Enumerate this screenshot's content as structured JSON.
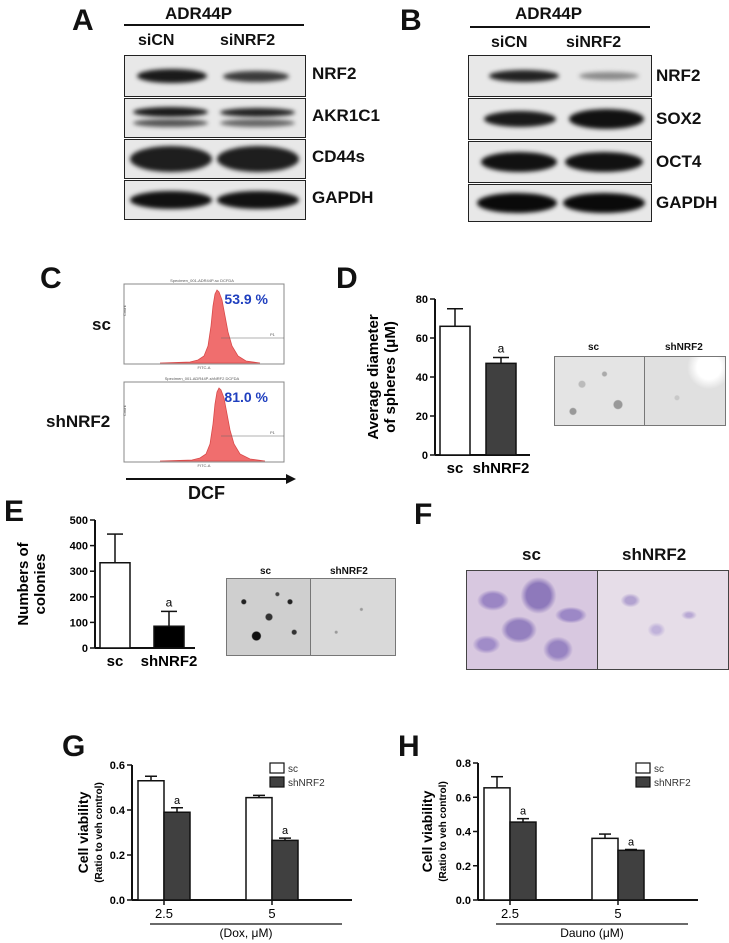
{
  "panels": {
    "A": "A",
    "B": "B",
    "C": "C",
    "D": "D",
    "E": "E",
    "F": "F",
    "G": "G",
    "H": "H"
  },
  "blotA": {
    "cell_line": "ADR44P",
    "lanes": [
      "siCN",
      "siNRF2"
    ],
    "rows": [
      "NRF2",
      "AKR1C1",
      "CD44s",
      "GAPDH"
    ]
  },
  "blotB": {
    "cell_line": "ADR44P",
    "lanes": [
      "siCN",
      "siNRF2"
    ],
    "rows": [
      "NRF2",
      "SOX2",
      "OCT4",
      "GAPDH"
    ]
  },
  "flow": {
    "rows": [
      {
        "label": "sc",
        "percent": "53.9 %",
        "header": "Specimen_001-ADR44P-sc DCFDA"
      },
      {
        "label": "shNRF2",
        "percent": "81.0 %",
        "header": "Specimen_001-ADR44P-shNRF2 DCFDA"
      }
    ],
    "gate": "P1",
    "xtick": "FITC-A",
    "ytick": "Count",
    "xlabel": "DCF"
  },
  "photosD": {
    "left": "sc",
    "right": "shNRF2"
  },
  "photosE": {
    "left": "sc",
    "right": "shNRF2"
  },
  "photosF": {
    "left": "sc",
    "right": "shNRF2"
  },
  "chart_data": [
    {
      "panel": "D",
      "type": "bar",
      "categories": [
        "sc",
        "shNRF2"
      ],
      "values": [
        66,
        47
      ],
      "errors": [
        9,
        3
      ],
      "sig": [
        "",
        "a"
      ],
      "ylabel": "Average diameter of spheres (μM)",
      "ylim": [
        0,
        80
      ],
      "yticks": [
        0,
        20,
        40,
        60,
        80
      ],
      "colors": [
        "#ffffff",
        "#404040"
      ]
    },
    {
      "panel": "E",
      "type": "bar",
      "categories": [
        "sc",
        "shNRF2"
      ],
      "values": [
        333,
        85
      ],
      "errors": [
        112,
        58
      ],
      "sig": [
        "",
        "a"
      ],
      "ylabel": "Numbers of colonies",
      "ylim": [
        0,
        500
      ],
      "yticks": [
        0,
        100,
        200,
        300,
        400,
        500
      ],
      "colors": [
        "#ffffff",
        "#000000"
      ]
    },
    {
      "panel": "G",
      "type": "bar",
      "categories": [
        "2.5",
        "5"
      ],
      "series": [
        {
          "name": "sc",
          "values": [
            0.53,
            0.455
          ],
          "errors": [
            0.02,
            0.01
          ],
          "color": "#ffffff",
          "sig": [
            "",
            ""
          ]
        },
        {
          "name": "shNRF2",
          "values": [
            0.39,
            0.265
          ],
          "errors": [
            0.02,
            0.01
          ],
          "color": "#404040",
          "sig": [
            "a",
            "a"
          ]
        }
      ],
      "ylabel": "Cell viability",
      "ylabel2": "(Ratio to veh control)",
      "xlabel": "(Dox, μM)",
      "ylim": [
        0,
        0.6
      ],
      "yticks": [
        "0.0",
        "0.2",
        "0.4",
        "0.6"
      ],
      "legend": "top-right"
    },
    {
      "panel": "H",
      "type": "bar",
      "categories": [
        "2.5",
        "5"
      ],
      "series": [
        {
          "name": "sc",
          "values": [
            0.655,
            0.36
          ],
          "errors": [
            0.065,
            0.025
          ],
          "color": "#ffffff",
          "sig": [
            "",
            ""
          ]
        },
        {
          "name": "shNRF2",
          "values": [
            0.455,
            0.29
          ],
          "errors": [
            0.02,
            0.005
          ],
          "color": "#404040",
          "sig": [
            "a",
            "a"
          ]
        }
      ],
      "ylabel": "Cell viability",
      "ylabel2": "(Ratio to veh control)",
      "xlabel": "Dauno (μM)",
      "ylim": [
        0,
        0.8
      ],
      "yticks": [
        "0.0",
        "0.2",
        "0.4",
        "0.6",
        "0.8"
      ],
      "legend": "top-right"
    }
  ]
}
